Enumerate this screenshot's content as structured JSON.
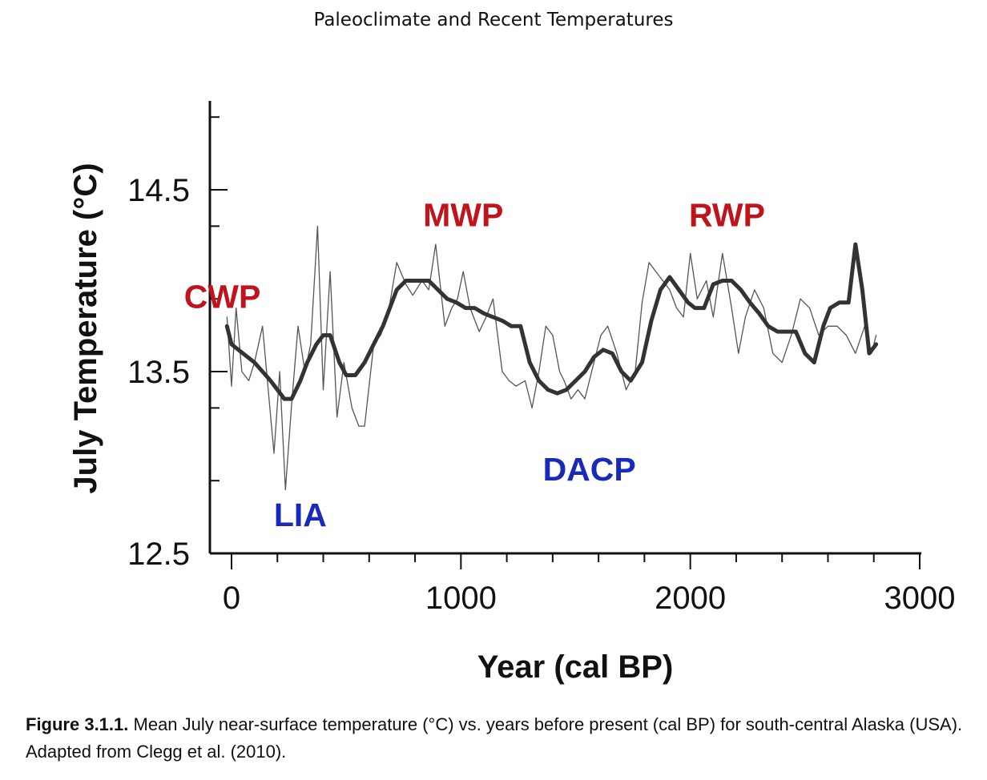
{
  "header": {
    "title": "Paleoclimate and Recent Temperatures"
  },
  "chart_data": {
    "type": "line",
    "xlabel": "Year (cal BP)",
    "ylabel": "July Temperature (°C)",
    "xlim": [
      -100,
      3000
    ],
    "ylim": [
      12.5,
      14.9
    ],
    "x_ticks": [
      "0",
      "1000",
      "2000",
      "3000"
    ],
    "y_ticks": [
      "12.5",
      "13.5",
      "14.5"
    ],
    "grid": false,
    "legend": "none",
    "series": [
      {
        "style": "thin-raw",
        "color": "#555555",
        "x": [
          -20,
          0,
          20,
          45,
          75,
          100,
          135,
          160,
          185,
          210,
          235,
          262,
          290,
          320,
          345,
          375,
          400,
          430,
          460,
          490,
          525,
          555,
          580,
          620,
          650,
          680,
          720,
          760,
          790,
          830,
          860,
          890,
          930,
          960,
          985,
          1010,
          1040,
          1080,
          1110,
          1140,
          1180,
          1210,
          1240,
          1280,
          1310,
          1340,
          1370,
          1400,
          1430,
          1450,
          1480,
          1510,
          1540,
          1580,
          1610,
          1640,
          1680,
          1720,
          1760,
          1790,
          1820,
          1850,
          1880,
          1910,
          1940,
          1970,
          2000,
          2030,
          2070,
          2100,
          2140,
          2180,
          2210,
          2240,
          2280,
          2320,
          2360,
          2400,
          2440,
          2480,
          2520,
          2560,
          2600,
          2640,
          2680,
          2720,
          2760,
          2790,
          2810
        ],
        "y": [
          13.8,
          13.42,
          13.85,
          13.5,
          13.45,
          13.55,
          13.75,
          13.4,
          13.05,
          13.5,
          12.85,
          13.32,
          13.75,
          13.5,
          13.65,
          14.3,
          13.4,
          14.05,
          13.25,
          13.55,
          13.3,
          13.2,
          13.2,
          13.65,
          13.7,
          13.8,
          14.1,
          13.98,
          13.92,
          14.0,
          13.95,
          14.2,
          13.75,
          13.85,
          13.9,
          14.05,
          13.85,
          13.72,
          13.8,
          13.9,
          13.5,
          13.45,
          13.42,
          13.45,
          13.3,
          13.5,
          13.75,
          13.7,
          13.5,
          13.45,
          13.35,
          13.4,
          13.35,
          13.55,
          13.7,
          13.75,
          13.6,
          13.4,
          13.5,
          13.88,
          14.1,
          14.05,
          14.0,
          13.95,
          13.85,
          13.8,
          14.15,
          13.9,
          14.0,
          13.8,
          14.15,
          13.85,
          13.6,
          13.8,
          13.95,
          13.85,
          13.6,
          13.55,
          13.7,
          13.9,
          13.85,
          13.7,
          13.75,
          13.75,
          13.7,
          13.6,
          13.75,
          13.6,
          13.7
        ]
      },
      {
        "style": "smoothed",
        "color": "#333333",
        "x": [
          -20,
          0,
          50,
          100,
          135,
          170,
          200,
          230,
          262,
          300,
          330,
          370,
          400,
          430,
          470,
          500,
          540,
          580,
          620,
          660,
          690,
          720,
          760,
          790,
          830,
          860,
          900,
          940,
          980,
          1020,
          1060,
          1100,
          1140,
          1180,
          1220,
          1260,
          1300,
          1340,
          1380,
          1420,
          1460,
          1500,
          1540,
          1580,
          1620,
          1660,
          1700,
          1740,
          1790,
          1830,
          1870,
          1910,
          1950,
          1990,
          2020,
          2060,
          2100,
          2140,
          2180,
          2220,
          2260,
          2300,
          2340,
          2380,
          2420,
          2460,
          2500,
          2540,
          2580,
          2610,
          2650,
          2690,
          2720,
          2750,
          2780,
          2810
        ],
        "y": [
          13.75,
          13.65,
          13.6,
          13.55,
          13.5,
          13.45,
          13.4,
          13.35,
          13.35,
          13.45,
          13.55,
          13.65,
          13.7,
          13.7,
          13.55,
          13.48,
          13.48,
          13.55,
          13.65,
          13.75,
          13.85,
          13.95,
          14.0,
          14.0,
          14.0,
          14.0,
          13.95,
          13.9,
          13.88,
          13.85,
          13.85,
          13.82,
          13.8,
          13.78,
          13.75,
          13.75,
          13.55,
          13.45,
          13.4,
          13.38,
          13.4,
          13.45,
          13.5,
          13.58,
          13.62,
          13.6,
          13.5,
          13.45,
          13.55,
          13.78,
          13.95,
          14.02,
          13.95,
          13.88,
          13.85,
          13.85,
          13.98,
          14.0,
          14.0,
          13.95,
          13.88,
          13.82,
          13.75,
          13.72,
          13.72,
          13.72,
          13.6,
          13.55,
          13.75,
          13.85,
          13.88,
          13.88,
          14.2,
          13.95,
          13.6,
          13.65
        ]
      }
    ],
    "annotations": [
      {
        "text": "CWP",
        "x": -40,
        "y": 13.85,
        "color": "#c0141c"
      },
      {
        "text": "LIA",
        "x": 300,
        "y": 12.65,
        "color": "#1a2ab8"
      },
      {
        "text": "MWP",
        "x": 1010,
        "y": 14.3,
        "color": "#c0141c"
      },
      {
        "text": "DACP",
        "x": 1560,
        "y": 12.9,
        "color": "#1a2ab8"
      },
      {
        "text": "RWP",
        "x": 2160,
        "y": 14.3,
        "color": "#c0141c"
      }
    ]
  },
  "caption": {
    "label": "Figure 3.1.1.",
    "text": " Mean July near-surface temperature (°C) vs. years before present (cal BP) for south-central Alaska (USA). Adapted from Clegg et al. (2010)."
  }
}
